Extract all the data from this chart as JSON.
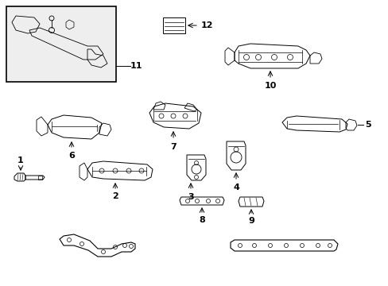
{
  "bg": "#ffffff",
  "lc": "#000000",
  "tc": "#000000",
  "fig_w": 4.89,
  "fig_h": 3.6,
  "dpi": 100
}
